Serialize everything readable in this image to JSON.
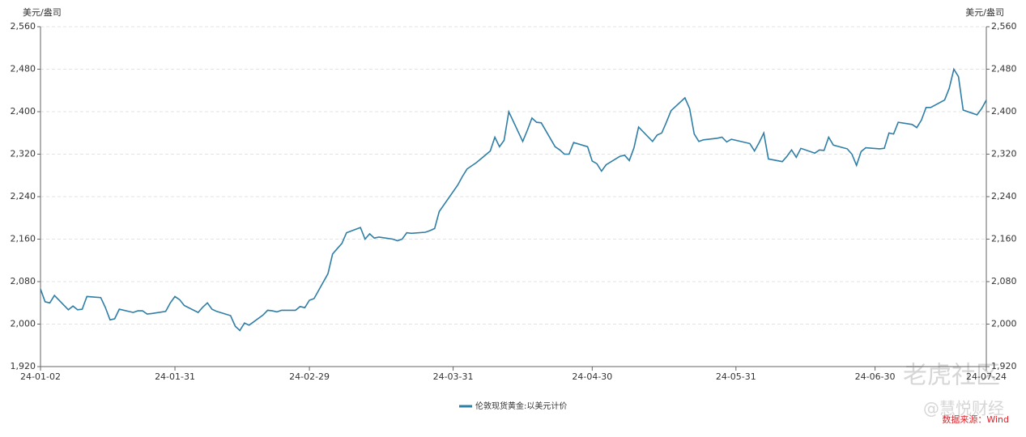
{
  "chart_data": {
    "type": "line",
    "y_unit": "美元/盎司",
    "y2_unit": "美元/盎司",
    "source": "数据来源：Wind",
    "watermarks": [
      "老虎社区",
      "@慧悦财经"
    ],
    "x": [
      "24-01-02",
      "24-01-03",
      "24-01-04",
      "24-01-05",
      "24-01-08",
      "24-01-09",
      "24-01-10",
      "24-01-11",
      "24-01-12",
      "24-01-15",
      "24-01-16",
      "24-01-17",
      "24-01-18",
      "24-01-19",
      "24-01-22",
      "24-01-23",
      "24-01-24",
      "24-01-25",
      "24-01-26",
      "24-01-29",
      "24-01-30",
      "24-01-31",
      "24-02-01",
      "24-02-02",
      "24-02-05",
      "24-02-06",
      "24-02-07",
      "24-02-08",
      "24-02-09",
      "24-02-12",
      "24-02-13",
      "24-02-14",
      "24-02-15",
      "24-02-16",
      "24-02-19",
      "24-02-20",
      "24-02-21",
      "24-02-22",
      "24-02-23",
      "24-02-26",
      "24-02-27",
      "24-02-28",
      "24-02-29",
      "24-03-01",
      "24-03-04",
      "24-03-05",
      "24-03-06",
      "24-03-07",
      "24-03-08",
      "24-03-11",
      "24-03-12",
      "24-03-13",
      "24-03-14",
      "24-03-15",
      "24-03-18",
      "24-03-19",
      "24-03-20",
      "24-03-21",
      "24-03-22",
      "24-03-25",
      "24-03-26",
      "24-03-27",
      "24-03-28",
      "24-04-01",
      "24-04-02",
      "24-04-03",
      "24-04-04",
      "24-04-05",
      "24-04-08",
      "24-04-09",
      "24-04-10",
      "24-04-11",
      "24-04-12",
      "24-04-15",
      "24-04-16",
      "24-04-17",
      "24-04-18",
      "24-04-19",
      "24-04-22",
      "24-04-23",
      "24-04-24",
      "24-04-25",
      "24-04-26",
      "24-04-29",
      "24-04-30",
      "24-05-01",
      "24-05-02",
      "24-05-03",
      "24-05-06",
      "24-05-07",
      "24-05-08",
      "24-05-09",
      "24-05-10",
      "24-05-13",
      "24-05-14",
      "24-05-15",
      "24-05-16",
      "24-05-17",
      "24-05-20",
      "24-05-21",
      "24-05-22",
      "24-05-23",
      "24-05-24",
      "24-05-27",
      "24-05-28",
      "24-05-29",
      "24-05-30",
      "24-05-31",
      "24-06-03",
      "24-06-04",
      "24-06-05",
      "24-06-06",
      "24-06-07",
      "24-06-10",
      "24-06-11",
      "24-06-12",
      "24-06-13",
      "24-06-14",
      "24-06-17",
      "24-06-18",
      "24-06-19",
      "24-06-20",
      "24-06-21",
      "24-06-24",
      "24-06-25",
      "24-06-26",
      "24-06-27",
      "24-06-28",
      "24-07-01",
      "24-07-02",
      "24-07-03",
      "24-07-04",
      "24-07-05",
      "24-07-08",
      "24-07-09",
      "24-07-10",
      "24-07-11",
      "24-07-12",
      "24-07-15",
      "24-07-16",
      "24-07-17",
      "24-07-18",
      "24-07-19",
      "24-07-22",
      "24-07-23",
      "24-07-24"
    ],
    "series": [
      {
        "name": "伦敦现货黄金:以美元计价",
        "color": "#2e7ea6",
        "values": [
          2066,
          2042,
          2040,
          2054,
          2027,
          2034,
          2027,
          2028,
          2052,
          2050,
          2031,
          2008,
          2010,
          2028,
          2022,
          2025,
          2025,
          2019,
          2020,
          2024,
          2040,
          2052,
          2046,
          2035,
          2022,
          2032,
          2040,
          2028,
          2024,
          2016,
          1996,
          1988,
          2002,
          1998,
          2017,
          2026,
          2025,
          2023,
          2026,
          2026,
          2033,
          2031,
          2045,
          2048,
          2095,
          2132,
          2142,
          2152,
          2172,
          2182,
          2160,
          2170,
          2162,
          2164,
          2160,
          2157,
          2160,
          2172,
          2171,
          2173,
          2176,
          2180,
          2212,
          2262,
          2278,
          2292,
          2298,
          2304,
          2326,
          2352,
          2334,
          2346,
          2400,
          2344,
          2365,
          2388,
          2380,
          2379,
          2334,
          2328,
          2320,
          2320,
          2342,
          2334,
          2307,
          2302,
          2288,
          2300,
          2316,
          2318,
          2308,
          2332,
          2371,
          2344,
          2356,
          2360,
          2380,
          2402,
          2426,
          2406,
          2358,
          2344,
          2347,
          2350,
          2352,
          2343,
          2348,
          2346,
          2340,
          2326,
          2342,
          2360,
          2311,
          2306,
          2316,
          2328,
          2314,
          2331,
          2322,
          2328,
          2327,
          2352,
          2337,
          2330,
          2320,
          2299,
          2325,
          2332,
          2330,
          2331,
          2360,
          2358,
          2380,
          2376,
          2370,
          2384,
          2408,
          2408,
          2422,
          2444,
          2480,
          2466,
          2403,
          2394,
          2406,
          2422
        ]
      }
    ],
    "xlim": [
      "24-01-02",
      "24-07-24"
    ],
    "xticks": [
      "24-01-02",
      "24-01-31",
      "24-02-29",
      "24-03-31",
      "24-04-30",
      "24-05-31",
      "24-06-30",
      "24-07-24"
    ],
    "ylim": [
      1920,
      2560
    ],
    "yticks": [
      {
        "value": 1920,
        "label": "1,920"
      },
      {
        "value": 2000,
        "label": "2,000"
      },
      {
        "value": 2080,
        "label": "2,080"
      },
      {
        "value": 2160,
        "label": "2,160"
      },
      {
        "value": 2240,
        "label": "2,240"
      },
      {
        "value": 2320,
        "label": "2,320"
      },
      {
        "value": 2400,
        "label": "2,400"
      },
      {
        "value": 2480,
        "label": "2,480"
      },
      {
        "value": 2560,
        "label": "2,560"
      }
    ],
    "y2lim": [
      1920,
      2560
    ],
    "y2ticks": [
      {
        "value": 1920,
        "label": "1,920"
      },
      {
        "value": 2000,
        "label": "2,000"
      },
      {
        "value": 2080,
        "label": "2,080"
      },
      {
        "value": 2160,
        "label": "2,160"
      },
      {
        "value": 2240,
        "label": "2,240"
      },
      {
        "value": 2320,
        "label": "2,320"
      },
      {
        "value": 2400,
        "label": "2,400"
      },
      {
        "value": 2480,
        "label": "2,480"
      },
      {
        "value": 2560,
        "label": "2,560"
      }
    ],
    "grid": true,
    "legend": "bottom"
  }
}
